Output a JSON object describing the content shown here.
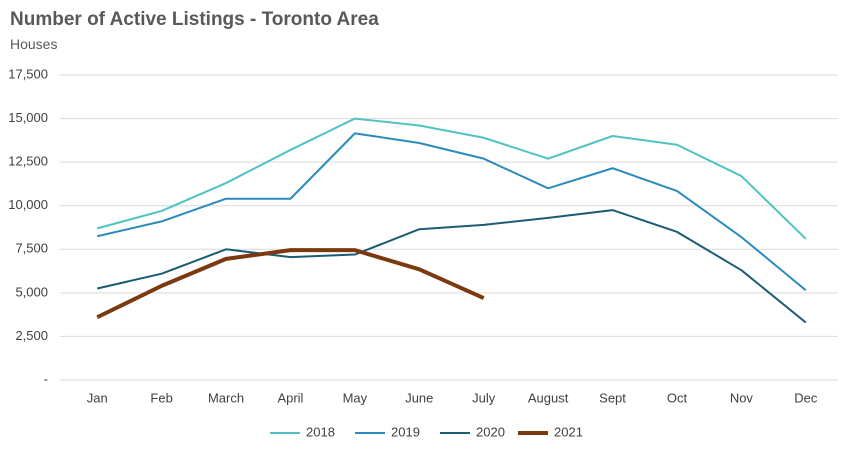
{
  "chart_data": {
    "type": "line",
    "title": "Number of Active Listings - Toronto Area",
    "subtitle": "Houses",
    "categories": [
      "Jan",
      "Feb",
      "March",
      "April",
      "May",
      "June",
      "July",
      "August",
      "Sept",
      "Oct",
      "Nov",
      "Dec"
    ],
    "series": [
      {
        "name": "2018",
        "color": "#4fc3c3",
        "values": [
          8700,
          9700,
          11300,
          13200,
          15000,
          14600,
          13900,
          12700,
          14000,
          13500,
          11700,
          8100
        ]
      },
      {
        "name": "2019",
        "color": "#2b8bbd",
        "values": [
          8250,
          9100,
          10400,
          10400,
          14150,
          13600,
          12700,
          11000,
          12150,
          10850,
          8200,
          5150
        ]
      },
      {
        "name": "2020",
        "color": "#1b5c74",
        "values": [
          5250,
          6100,
          7500,
          7050,
          7200,
          8650,
          8900,
          9300,
          9750,
          8500,
          6300,
          3300
        ]
      },
      {
        "name": "2021",
        "color": "#7b3910",
        "values": [
          3600,
          5400,
          6950,
          7450,
          7450,
          6350,
          4700,
          null,
          null,
          null,
          null,
          null
        ]
      }
    ],
    "ylim": [
      0,
      17500
    ],
    "yticks": [
      {
        "value": 0,
        "label": "-"
      },
      {
        "value": 2500,
        "label": "2,500"
      },
      {
        "value": 5000,
        "label": "5,000"
      },
      {
        "value": 7500,
        "label": "7,500"
      },
      {
        "value": 10000,
        "label": "10,000"
      },
      {
        "value": 12500,
        "label": "12,500"
      },
      {
        "value": 15000,
        "label": "15,000"
      },
      {
        "value": 17500,
        "label": "17,500"
      }
    ],
    "grid": true,
    "legend": "bottom"
  }
}
